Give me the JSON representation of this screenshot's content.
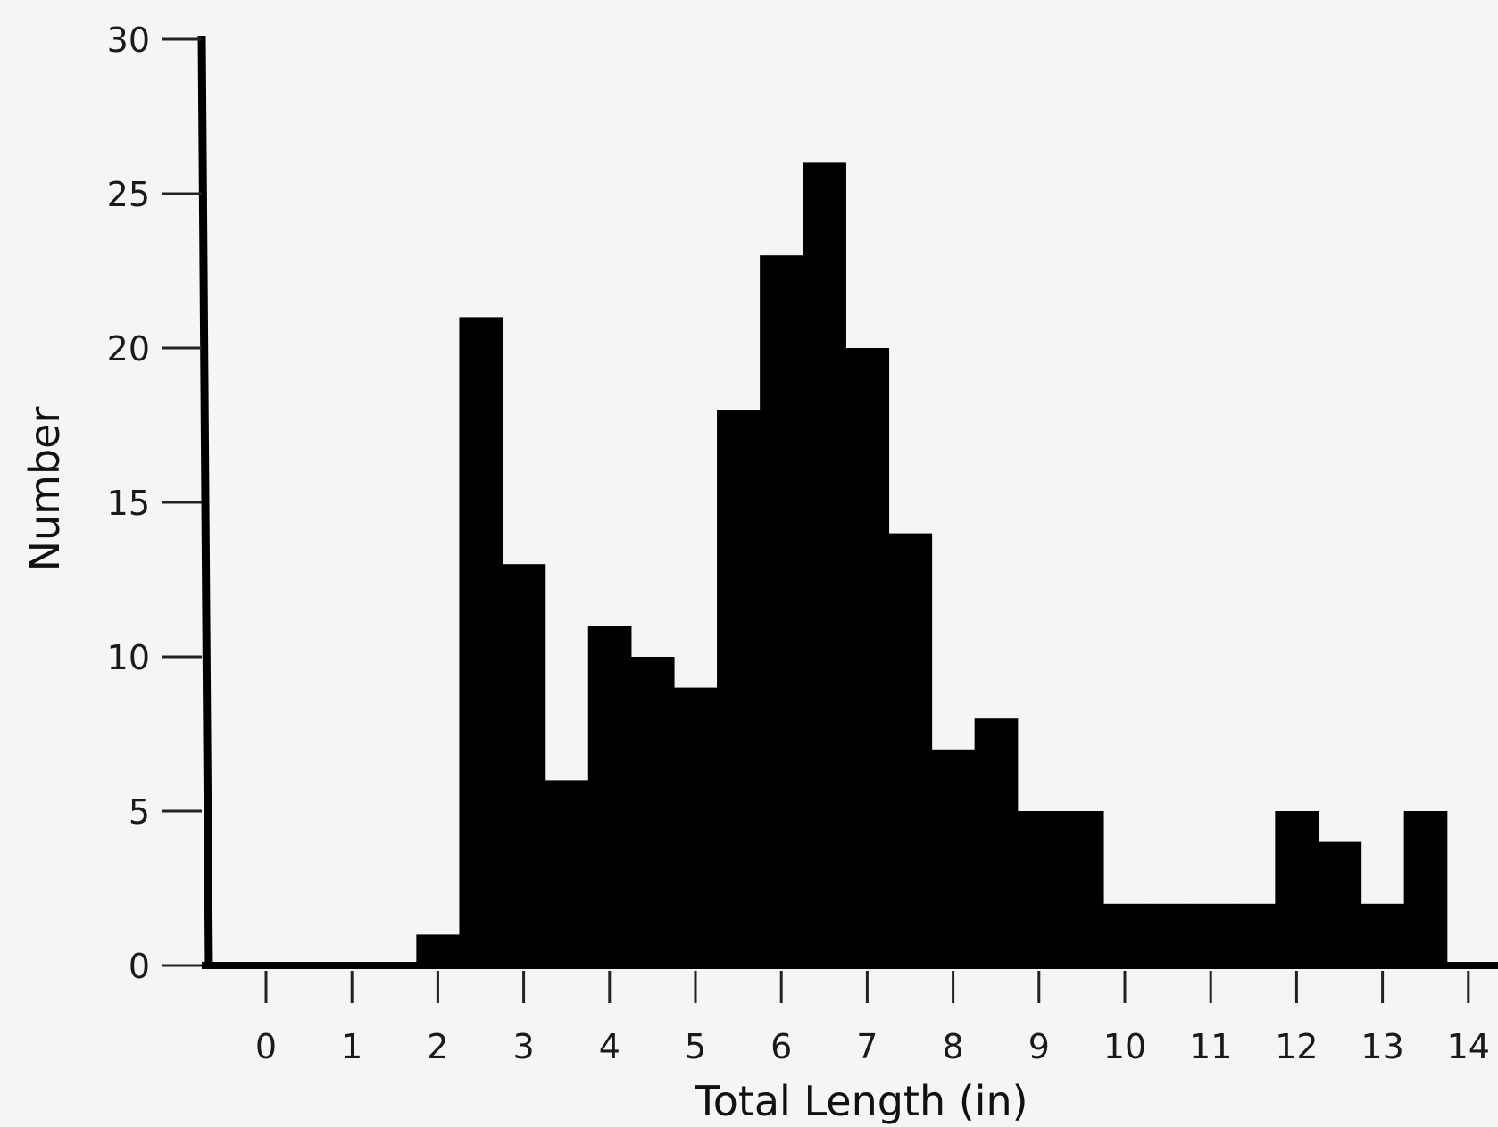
{
  "chart_data": {
    "type": "bar",
    "title": "",
    "xlabel": "Total Length (in)",
    "ylabel": "Number",
    "bin_width": 0.5,
    "bin_starts": [
      -0.75,
      -0.25,
      0.25,
      0.75,
      1.25,
      1.75,
      2.25,
      2.75,
      3.25,
      3.75,
      4.25,
      4.75,
      5.25,
      5.75,
      6.25,
      6.75,
      7.25,
      7.75,
      8.25,
      8.75,
      9.25,
      9.75,
      10.25,
      10.75,
      11.25,
      11.75,
      12.25,
      12.75,
      13.25,
      13.75,
      14.25
    ],
    "values": [
      0,
      0,
      0,
      0,
      0,
      1,
      21,
      13,
      6,
      11,
      10,
      9,
      18,
      23,
      26,
      20,
      14,
      7,
      8,
      5,
      5,
      2,
      2,
      2,
      2,
      5,
      4,
      2,
      5,
      0,
      0
    ],
    "xticks": [
      0,
      1,
      2,
      3,
      4,
      5,
      6,
      7,
      8,
      9,
      10,
      11,
      12,
      13,
      14
    ],
    "yticks": [
      0,
      5,
      10,
      15,
      20,
      25,
      30
    ],
    "xlim": [
      -0.75,
      14.5
    ],
    "ylim": [
      0,
      30
    ],
    "bar_color": "#000000",
    "grid": false,
    "legend": false
  }
}
